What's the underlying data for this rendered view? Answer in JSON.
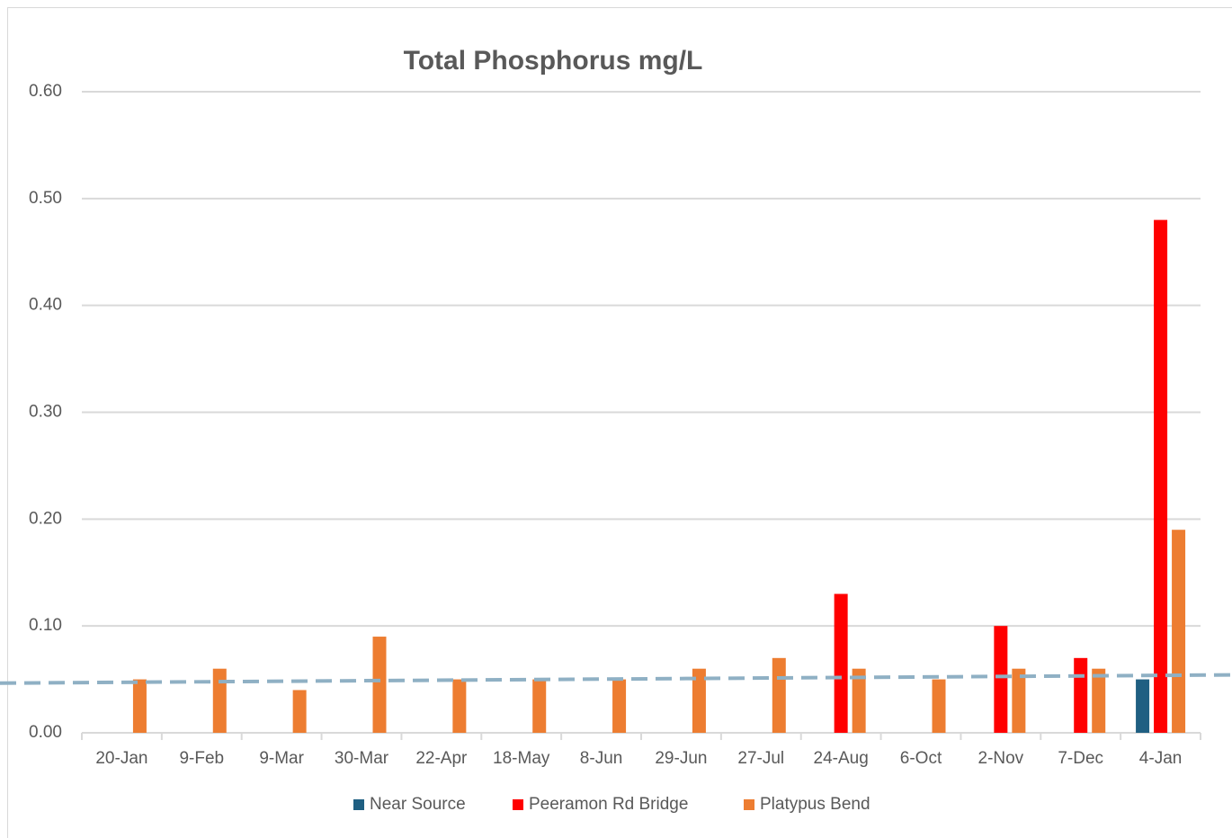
{
  "chart_data": {
    "type": "bar",
    "title": "Total Phosphorus mg/L",
    "categories": [
      "20-Jan",
      "9-Feb",
      "9-Mar",
      "30-Mar",
      "22-Apr",
      "18-May",
      "8-Jun",
      "29-Jun",
      "27-Jul",
      "24-Aug",
      "6-Oct",
      "2-Nov",
      "7-Dec",
      "4-Jan"
    ],
    "series": [
      {
        "name": "Near Source",
        "color": "#1f5f82",
        "values": [
          null,
          null,
          null,
          null,
          null,
          null,
          null,
          null,
          null,
          null,
          null,
          null,
          null,
          0.05
        ]
      },
      {
        "name": "Peeramon Rd Bridge",
        "color": "#ff0000",
        "values": [
          null,
          null,
          null,
          null,
          null,
          null,
          null,
          null,
          null,
          0.13,
          null,
          0.1,
          0.07,
          0.48
        ]
      },
      {
        "name": "Platypus Bend",
        "color": "#ed7d31",
        "values": [
          0.05,
          0.06,
          0.04,
          0.09,
          0.05,
          0.05,
          0.05,
          0.06,
          0.07,
          0.06,
          0.05,
          0.06,
          0.06,
          0.19
        ]
      }
    ],
    "trendline": {
      "values": [
        0.047,
        0.054
      ],
      "color": "#8fb0c4"
    },
    "ylim": [
      0,
      0.6
    ],
    "yticks": [
      {
        "value": 0,
        "label": "0.00"
      },
      {
        "value": 0.1,
        "label": "0.10"
      },
      {
        "value": 0.2,
        "label": "0.20"
      },
      {
        "value": 0.3,
        "label": "0.30"
      },
      {
        "value": 0.4,
        "label": "0.40"
      },
      {
        "value": 0.5,
        "label": "0.50"
      },
      {
        "value": 0.6,
        "label": "0.60"
      }
    ],
    "grid": true,
    "legend": "bottom"
  }
}
